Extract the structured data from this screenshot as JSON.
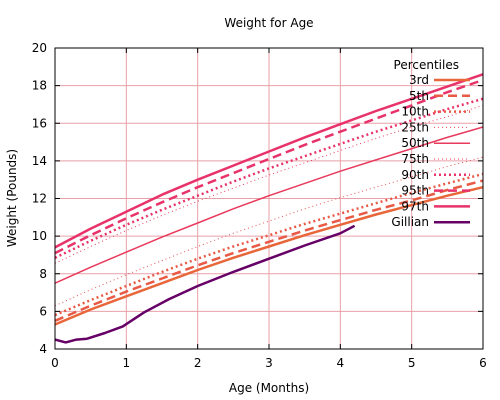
{
  "chart_data": {
    "type": "line",
    "title": "Weight for Age",
    "xlabel": "Age (Months)",
    "ylabel": "Weight (Pounds)",
    "xlim": [
      0,
      6
    ],
    "ylim": [
      4,
      20
    ],
    "xticks": [
      "0",
      "1",
      "2",
      "3",
      "4",
      "5",
      "6"
    ],
    "yticks": [
      "4",
      "6",
      "8",
      "10",
      "12",
      "14",
      "16",
      "18",
      "20"
    ],
    "grid": true,
    "legend": {
      "title": "Percentiles",
      "placement": "top-right"
    },
    "series": [
      {
        "name": "3rd",
        "color": "#e8663a",
        "style": "solid",
        "width": 2.5,
        "x": [
          0,
          0.5,
          1,
          1.5,
          2,
          2.5,
          3,
          3.5,
          4,
          4.5,
          5,
          5.5,
          6
        ],
        "y": [
          5.3,
          6.1,
          6.8,
          7.5,
          8.2,
          8.85,
          9.45,
          10.05,
          10.6,
          11.15,
          11.65,
          12.15,
          12.6
        ]
      },
      {
        "name": "5th",
        "color": "#e85a46",
        "style": "dashed",
        "width": 2.5,
        "x": [
          0,
          0.5,
          1,
          1.5,
          2,
          2.5,
          3,
          3.5,
          4,
          4.5,
          5,
          5.5,
          6
        ],
        "y": [
          5.5,
          6.3,
          7.05,
          7.75,
          8.45,
          9.1,
          9.7,
          10.3,
          10.85,
          11.4,
          11.9,
          12.45,
          12.95
        ]
      },
      {
        "name": "10th",
        "color": "#e85a46",
        "style": "dotted",
        "width": 2.5,
        "x": [
          0,
          0.5,
          1,
          1.5,
          2,
          2.5,
          3,
          3.5,
          4,
          4.5,
          5,
          5.5,
          6
        ],
        "y": [
          5.8,
          6.6,
          7.35,
          8.1,
          8.8,
          9.45,
          10.05,
          10.65,
          11.2,
          11.75,
          12.3,
          12.8,
          13.3
        ]
      },
      {
        "name": "25th",
        "color": "#e85050",
        "style": "dotted-thin",
        "width": 1,
        "x": [
          0,
          0.5,
          1,
          1.5,
          2,
          2.5,
          3,
          3.5,
          4,
          4.5,
          5,
          5.5,
          6
        ],
        "y": [
          6.3,
          7.15,
          7.95,
          8.7,
          9.45,
          10.15,
          10.8,
          11.45,
          12.05,
          12.6,
          13.15,
          13.7,
          14.2
        ]
      },
      {
        "name": "50th",
        "color": "#e83a5c",
        "style": "solid",
        "width": 1.5,
        "x": [
          0,
          0.5,
          1,
          1.5,
          2,
          2.5,
          3,
          3.5,
          4,
          4.5,
          5,
          5.5,
          6
        ],
        "y": [
          7.5,
          8.35,
          9.15,
          9.95,
          10.7,
          11.45,
          12.15,
          12.8,
          13.45,
          14.05,
          14.65,
          15.25,
          15.8
        ]
      },
      {
        "name": "75th",
        "color": "#e83a5c",
        "style": "dotted-thin",
        "width": 1,
        "x": [
          0,
          0.5,
          1,
          1.5,
          2,
          2.5,
          3,
          3.5,
          4,
          4.5,
          5,
          5.5,
          6
        ],
        "y": [
          8.55,
          9.45,
          10.3,
          11.1,
          11.85,
          12.55,
          13.25,
          13.9,
          14.55,
          15.2,
          15.8,
          16.35,
          16.95
        ]
      },
      {
        "name": "90th",
        "color": "#e8336a",
        "style": "dotted",
        "width": 2.5,
        "x": [
          0,
          0.5,
          1,
          1.5,
          2,
          2.5,
          3,
          3.5,
          4,
          4.5,
          5,
          5.5,
          6
        ],
        "y": [
          8.85,
          9.75,
          10.6,
          11.4,
          12.15,
          12.9,
          13.6,
          14.25,
          14.9,
          15.55,
          16.15,
          16.75,
          17.3
        ]
      },
      {
        "name": "95th",
        "color": "#e8336a",
        "style": "dashed",
        "width": 2.5,
        "x": [
          0,
          0.5,
          1,
          1.5,
          2,
          2.5,
          3,
          3.5,
          4,
          4.5,
          5,
          5.5,
          6
        ],
        "y": [
          9.1,
          10.05,
          10.95,
          11.8,
          12.6,
          13.35,
          14.1,
          14.85,
          15.55,
          16.25,
          16.95,
          17.65,
          18.3
        ]
      },
      {
        "name": "97th",
        "color": "#e8336a",
        "style": "solid",
        "width": 2.5,
        "x": [
          0,
          0.5,
          1,
          1.5,
          2,
          2.5,
          3,
          3.5,
          4,
          4.5,
          5,
          5.5,
          6
        ],
        "y": [
          9.4,
          10.4,
          11.3,
          12.2,
          13.0,
          13.75,
          14.5,
          15.25,
          15.95,
          16.65,
          17.3,
          17.95,
          18.6
        ]
      },
      {
        "name": "Gillian",
        "color": "#660066",
        "style": "solid",
        "width": 2.5,
        "x": [
          0,
          0.15,
          0.3,
          0.45,
          0.7,
          0.95,
          1.25,
          1.6,
          2.0,
          2.5,
          3.0,
          3.5,
          4.0,
          4.2
        ],
        "y": [
          4.5,
          4.35,
          4.5,
          4.55,
          4.85,
          5.2,
          5.95,
          6.65,
          7.35,
          8.1,
          8.8,
          9.5,
          10.15,
          10.55
        ]
      }
    ]
  }
}
